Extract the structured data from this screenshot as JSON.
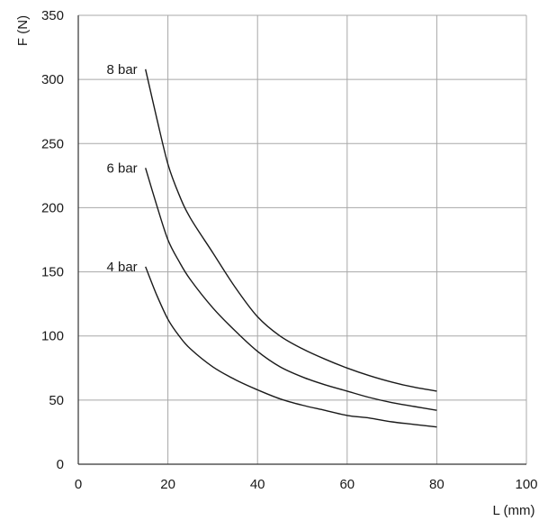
{
  "chart_data": {
    "type": "line",
    "xlabel": "L (mm)",
    "ylabel": "F (N)",
    "xlim": [
      0,
      100
    ],
    "ylim": [
      0,
      350
    ],
    "xticks": [
      0,
      20,
      40,
      60,
      80,
      100
    ],
    "yticks": [
      0,
      50,
      100,
      150,
      200,
      250,
      300,
      350
    ],
    "grid": true,
    "series": [
      {
        "name": "8 bar",
        "x": [
          15,
          17.5,
          20,
          22.5,
          25,
          30,
          35,
          40,
          45,
          50,
          55,
          60,
          65,
          70,
          75,
          80
        ],
        "y": [
          308,
          270,
          234,
          210,
          192,
          165,
          138,
          115,
          100,
          90,
          82,
          75,
          69,
          64,
          60,
          57
        ]
      },
      {
        "name": "6 bar",
        "x": [
          15,
          17.5,
          20,
          22.5,
          25,
          30,
          35,
          40,
          45,
          50,
          55,
          60,
          65,
          70,
          75,
          80
        ],
        "y": [
          231,
          202,
          175,
          158,
          144,
          122,
          104,
          88,
          76,
          68,
          62,
          57,
          52,
          48,
          45,
          42
        ]
      },
      {
        "name": "4 bar",
        "x": [
          15,
          17.5,
          20,
          22.5,
          25,
          30,
          35,
          40,
          45,
          50,
          55,
          60,
          65,
          70,
          75,
          80
        ],
        "y": [
          154,
          132,
          113,
          100,
          90,
          76,
          66,
          58,
          51,
          46,
          42,
          38,
          36,
          33,
          31,
          29
        ]
      }
    ]
  }
}
